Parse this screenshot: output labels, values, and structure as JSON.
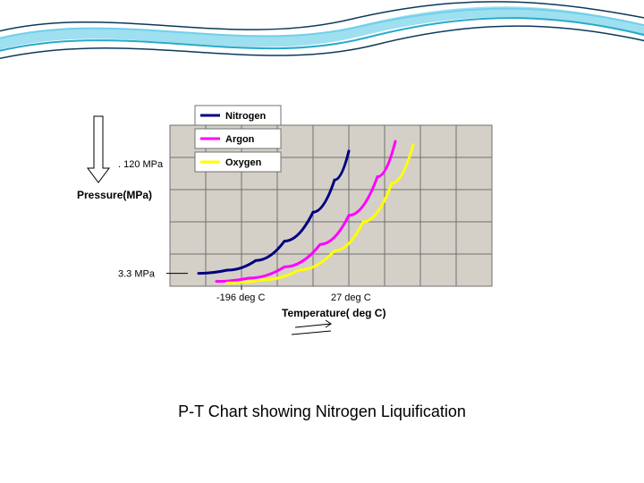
{
  "slide": {
    "background_color": "#ffffff",
    "wave": {
      "colors": [
        "#9edff0",
        "#6fd0ea",
        "#2aa9c9",
        "#0a3a5a"
      ],
      "stroke_width": 2
    }
  },
  "caption": {
    "text": "P-T Chart showing Nitrogen Liquification",
    "fontsize": 18,
    "color": "#000000"
  },
  "chart": {
    "type": "line",
    "plot": {
      "x_cells": 9,
      "y_cells": 5,
      "grid_color": "#707070",
      "grid_width": 1,
      "fill_color": "#d4d0c8",
      "border_color": "#707070"
    },
    "x_axis": {
      "label": "Temperature( deg C)",
      "label_fontsize": 12,
      "label_color": "#000000",
      "ticks": [
        {
          "cell": 2,
          "label": "-196 deg C"
        },
        {
          "cell": 5.2,
          "label": "27 deg C"
        }
      ]
    },
    "y_axis": {
      "label": "Pressure(MPa)",
      "label_fontsize": 12,
      "label_color": "#000000",
      "annotations": [
        {
          "text": ". 120 MPa",
          "cell_y": 1.2
        },
        {
          "text": "3.3 MPa",
          "cell_y": 4.6
        }
      ],
      "arrow": true
    },
    "series": [
      {
        "name": "Nitrogen",
        "color": "#000080",
        "width": 3,
        "points": [
          {
            "x": 0.8,
            "y": 4.6
          },
          {
            "x": 1.6,
            "y": 4.5
          },
          {
            "x": 2.4,
            "y": 4.2
          },
          {
            "x": 3.2,
            "y": 3.6
          },
          {
            "x": 4.0,
            "y": 2.7
          },
          {
            "x": 4.6,
            "y": 1.7
          },
          {
            "x": 5.0,
            "y": 0.8
          }
        ]
      },
      {
        "name": "Argon",
        "color": "#ff00ff",
        "width": 3,
        "points": [
          {
            "x": 1.3,
            "y": 4.85
          },
          {
            "x": 2.2,
            "y": 4.75
          },
          {
            "x": 3.2,
            "y": 4.4
          },
          {
            "x": 4.2,
            "y": 3.7
          },
          {
            "x": 5.0,
            "y": 2.8
          },
          {
            "x": 5.8,
            "y": 1.6
          },
          {
            "x": 6.3,
            "y": 0.5
          }
        ]
      },
      {
        "name": "Oxygen",
        "color": "#ffff00",
        "width": 3,
        "points": [
          {
            "x": 1.6,
            "y": 4.9
          },
          {
            "x": 2.6,
            "y": 4.8
          },
          {
            "x": 3.6,
            "y": 4.5
          },
          {
            "x": 4.6,
            "y": 3.9
          },
          {
            "x": 5.4,
            "y": 3.0
          },
          {
            "x": 6.2,
            "y": 1.8
          },
          {
            "x": 6.8,
            "y": 0.6
          }
        ]
      }
    ],
    "legend": {
      "box_border": "#707070",
      "box_fill": "#ffffff",
      "item_fontsize": 11,
      "swatch_width": 22
    },
    "temp_arrow_color": "#000000"
  }
}
